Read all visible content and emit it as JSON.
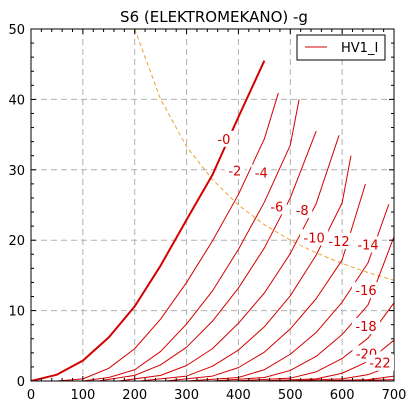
{
  "chart_data": {
    "type": "line",
    "title": "S6 (ELEKTROMEKANO)  -g",
    "xlabel": "",
    "ylabel": "",
    "xlim": [
      0,
      700
    ],
    "ylim": [
      0,
      50
    ],
    "x_ticks": [
      0,
      100,
      200,
      300,
      400,
      500,
      600,
      700
    ],
    "y_ticks": [
      0,
      10,
      20,
      30,
      40,
      50
    ],
    "grid": true,
    "legend": {
      "position": "top-right",
      "entries": [
        "HV1_I"
      ]
    },
    "colors": {
      "curves": "#d40000",
      "power_limit": "#f0a030",
      "grid": "#b0b0b0"
    },
    "curve_labels": [
      {
        "text": "-0",
        "x": 372,
        "y": 34.4
      },
      {
        "text": "-2",
        "x": 393,
        "y": 29.9
      },
      {
        "text": "-4",
        "x": 444,
        "y": 29.6
      },
      {
        "text": "-6",
        "x": 474,
        "y": 24.8
      },
      {
        "text": "-8",
        "x": 523,
        "y": 24.3
      },
      {
        "text": "-10",
        "x": 546,
        "y": 20.4
      },
      {
        "text": "-12",
        "x": 594,
        "y": 19.9
      },
      {
        "text": "-14",
        "x": 650,
        "y": 19.4
      },
      {
        "text": "-16",
        "x": 646,
        "y": 12.9
      },
      {
        "text": "-18",
        "x": 646,
        "y": 7.8
      },
      {
        "text": "-20",
        "x": 647,
        "y": 3.9
      },
      {
        "text": "-22",
        "x": 673,
        "y": 2.6
      }
    ],
    "series": [
      {
        "bias": "0",
        "x": [
          0,
          50,
          100,
          150,
          200,
          250,
          300,
          350,
          400,
          450
        ],
        "y": [
          0,
          0.9,
          2.9,
          6.2,
          10.6,
          16.4,
          22.9,
          29.3,
          37.5,
          45.5
        ]
      },
      {
        "bias": "-2",
        "x": [
          50,
          100,
          150,
          200,
          250,
          300,
          350,
          400,
          450,
          477
        ],
        "y": [
          0,
          0.3,
          1.8,
          4.6,
          8.8,
          14.0,
          19.9,
          26.5,
          34.4,
          40.9
        ]
      },
      {
        "bias": "-4",
        "x": [
          100,
          150,
          200,
          250,
          300,
          350,
          400,
          450,
          500,
          517
        ],
        "y": [
          0,
          0.5,
          1.6,
          4.2,
          8.1,
          12.8,
          18.7,
          25.4,
          33.5,
          40.0
        ]
      },
      {
        "bias": "-6",
        "x": [
          130,
          200,
          250,
          300,
          350,
          400,
          450,
          500,
          550
        ],
        "y": [
          0,
          0.8,
          2.3,
          4.8,
          8.5,
          13.2,
          18.9,
          26.0,
          35.5
        ]
      },
      {
        "bias": "-8",
        "x": [
          170,
          250,
          300,
          350,
          400,
          450,
          500,
          550,
          594
        ],
        "y": [
          0,
          0.8,
          2.2,
          4.6,
          8.2,
          12.5,
          18.1,
          25.2,
          34.9
        ]
      },
      {
        "bias": "-10",
        "x": [
          210,
          300,
          350,
          400,
          450,
          500,
          550,
          600,
          617
        ],
        "y": [
          0,
          0.7,
          2.1,
          4.4,
          7.7,
          12.1,
          17.9,
          25.3,
          32.0
        ]
      },
      {
        "bias": "-12",
        "x": [
          260,
          350,
          400,
          450,
          500,
          550,
          600,
          645
        ],
        "y": [
          0,
          0.7,
          1.9,
          4.1,
          7.4,
          11.7,
          17.2,
          28.0
        ]
      },
      {
        "bias": "-14",
        "x": [
          300,
          400,
          450,
          500,
          550,
          600,
          650,
          690
        ],
        "y": [
          0,
          0.5,
          1.6,
          3.8,
          6.9,
          11.2,
          16.8,
          25.1
        ]
      },
      {
        "bias": "-16",
        "x": [
          350,
          450,
          500,
          550,
          600,
          650,
          700
        ],
        "y": [
          0,
          0.5,
          1.5,
          3.5,
          6.6,
          10.8,
          20.5
        ]
      },
      {
        "bias": "-18",
        "x": [
          390,
          500,
          550,
          600,
          650,
          700
        ],
        "y": [
          0,
          0.4,
          1.3,
          3.2,
          6.1,
          11.1
        ]
      },
      {
        "bias": "-20",
        "x": [
          440,
          550,
          600,
          650,
          700
        ],
        "y": [
          0,
          0.3,
          1.1,
          2.8,
          5.8
        ]
      },
      {
        "bias": "-22",
        "x": [
          490,
          600,
          650,
          700
        ],
        "y": [
          0,
          0.3,
          0.9,
          2.3
        ]
      },
      {
        "bias": "-24",
        "x": [
          540,
          650,
          700
        ],
        "y": [
          0,
          0.2,
          0.7
        ]
      },
      {
        "bias": "-26",
        "x": [
          590,
          700
        ],
        "y": [
          0,
          0.2
        ]
      }
    ],
    "power_limit": {
      "x": [
        200,
        250,
        300,
        350,
        400,
        450,
        500,
        550,
        600,
        650,
        700
      ],
      "y": [
        50,
        40,
        33.3,
        28.6,
        25,
        22.2,
        20,
        18.2,
        16.7,
        15.4,
        14.3
      ]
    }
  }
}
